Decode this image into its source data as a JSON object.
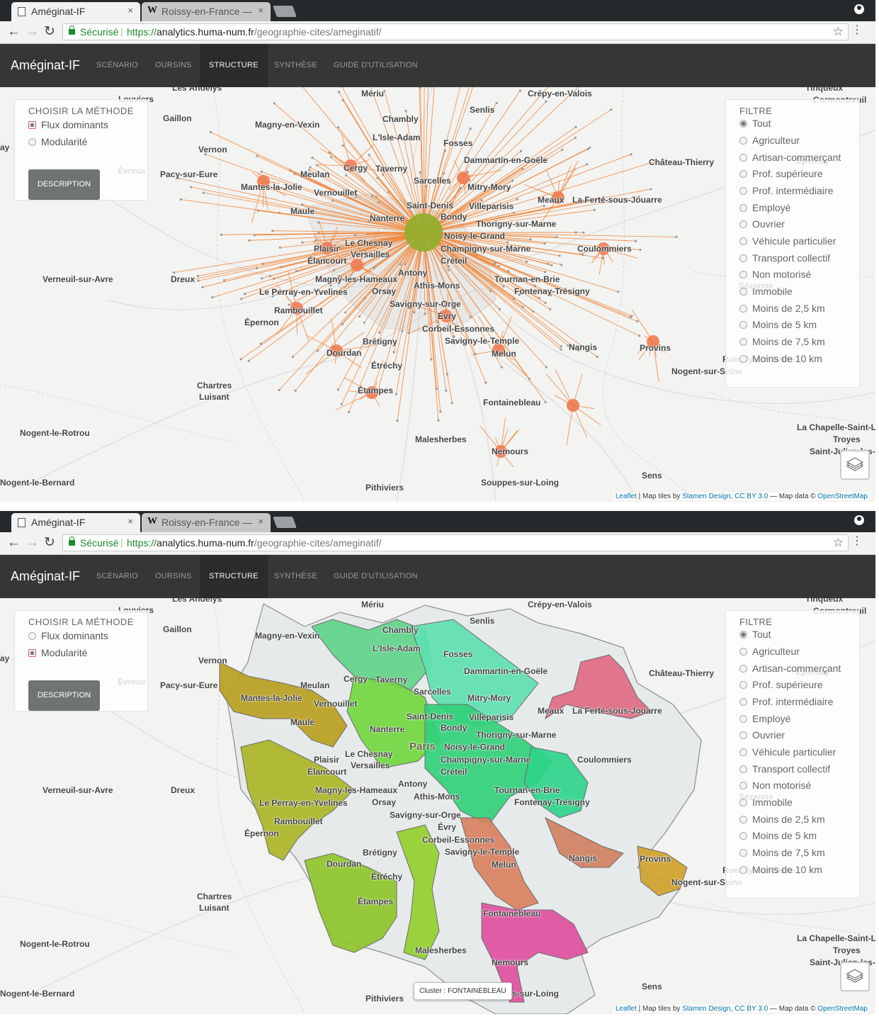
{
  "browser": {
    "tabs": [
      {
        "title": "Améginat-IF",
        "close": "×"
      },
      {
        "title": "Roissy-en-France —",
        "icon": "W",
        "close": "×"
      }
    ],
    "secure_label": "Sécurisé",
    "url": {
      "scheme": "https://",
      "host": "analytics.huma-num.fr",
      "path": "/geographie-cites/ameginatif/"
    }
  },
  "navbar": {
    "brand": "Améginat-IF",
    "items": [
      "SCÉNARIO",
      "OURSINS",
      "STRUCTURE",
      "SYNTHÈSE",
      "GUIDE D'UTILISATION"
    ],
    "active": "STRUCTURE"
  },
  "method_panel": {
    "title": "CHOISIR LA MÉTHODE",
    "options": [
      "Flux dominants",
      "Modularité"
    ],
    "button": "DESCRIPTION"
  },
  "filter_panel": {
    "title": "FILTRE",
    "options": [
      "Tout",
      "Agriculteur",
      "Artisan-commerçant",
      "Prof. supérieure",
      "Prof. intermédiaire",
      "Employé",
      "Ouvrier",
      "Véhicule particulier",
      "Transport collectif",
      "Non motorisé",
      "Immobile",
      "Moins de 2,5 km",
      "Moins de 5 km",
      "Moins de 7,5 km",
      "Moins de 10 km"
    ],
    "selected": "Tout"
  },
  "views": [
    {
      "method_selected": "Flux dominants",
      "overlay": "flows"
    },
    {
      "method_selected": "Modularité",
      "overlay": "clusters",
      "tooltip": "Cluster : FONTAINEBLEAU"
    }
  ],
  "attribution": {
    "leaflet": "Leaflet",
    "sep1": " | Map tiles by ",
    "stamen": "Stamen Design",
    "sep2": ", ",
    "cc": "CC BY 3.0",
    "sep3": " — Map data © ",
    "osm": "OpenStreetMap"
  },
  "places": {
    "paris": "Paris",
    "list": [
      "Les Andelys",
      "Louviers",
      "Gaillon",
      "Vernon",
      "Pacy-sur-Eure",
      "Évreux",
      "Mériu",
      "Senlis",
      "Crépy-en-Valois",
      "Chambly",
      "L'Isle-Adam",
      "Magny-en-Vexin",
      "Fosses",
      "Dammartin-en-Goële",
      "Cergy",
      "Taverny",
      "Sarcelles",
      "Mitry-Mory",
      "Meulan",
      "Mantes-la-Jolie",
      "Vernouillet",
      "Villeparisis",
      "Maule",
      "Nanterre",
      "Saint-Denis",
      "Bondy",
      "Meaux",
      "La Ferté-sous-Jouarre",
      "Château-Thierry",
      "Thorigny-sur-Marne",
      "Noisy-le-Grand",
      "Plaisir",
      "Le Chesnay",
      "Versailles",
      "Champigny-sur-Marne",
      "Élancourt",
      "Créteil",
      "Coulommiers",
      "Antony",
      "Magny-les-Hameaux",
      "Tournan-en-Brie",
      "Athis-Mons",
      "Fontenay-Trésigny",
      "Orsay",
      "Le Perray-en-Yvelines",
      "Rambouillet",
      "Savigny-sur-Orge",
      "Épernon",
      "Évry",
      "Corbeil-Essonnes",
      "Brétigny",
      "Savigny-le-Temple",
      "Provins",
      "Nangis",
      "Dourdan",
      "Melun",
      "Étréchy",
      "Nogent-sur-Seine",
      "Étampes",
      "Fontainebleau",
      "Chartres",
      "Luisant",
      "Nogent-le-Rotrou",
      "Malesherbes",
      "Nemours",
      "Sens",
      "La Chapelle-Saint-L",
      "Troyes",
      "Saint-Julien-les-V",
      "Pithiviers",
      "Souppes-sur-Loing",
      "Nogent-le-Bernard",
      "Verneuil-sur-Avre",
      "Dreux",
      "Sézanne",
      "Épernay",
      "Cormontreuil",
      "Tinqueux",
      "Romilly-sur-Seine",
      "ay"
    ]
  },
  "colors": {
    "flow": "#f08a40",
    "hub": "#f07a50",
    "paris_hub": "#8fae2a",
    "navbar": "#353735",
    "button": "#6f7471"
  },
  "icons": {
    "secure": "lock-icon",
    "bookmark": "star-icon",
    "menu": "kebab-menu-icon",
    "layers": "layers-icon",
    "profile": "profile-icon"
  }
}
